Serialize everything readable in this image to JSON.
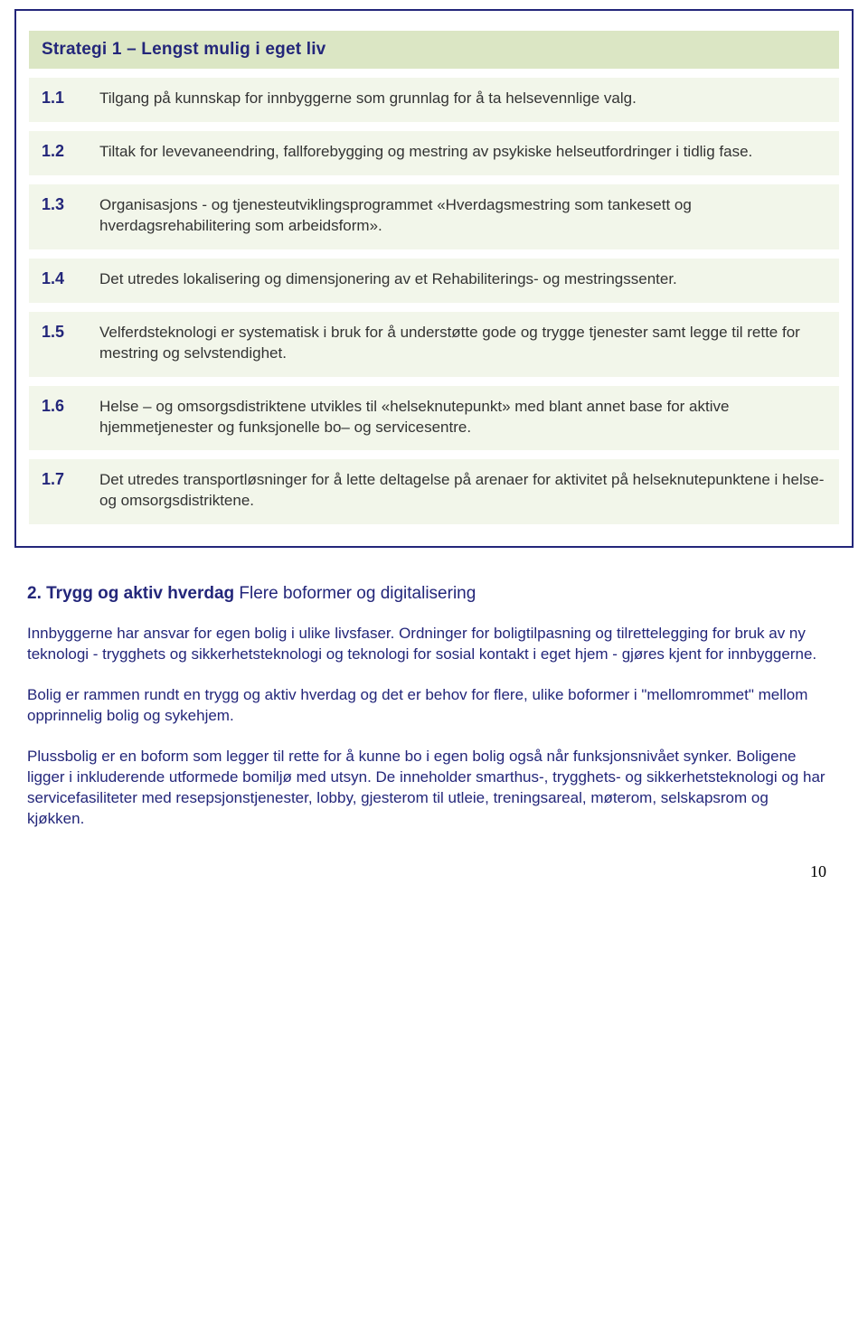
{
  "colors": {
    "border": "#23267a",
    "header_bg": "#dbe6c4",
    "row_bg": "#f2f6ea",
    "heading_text": "#23267a",
    "body_text": "#333333",
    "page_num": "#000000"
  },
  "strategy_table": {
    "header": "Strategi 1 – Lengst mulig i eget liv",
    "rows": [
      {
        "num": "1.1",
        "text": "Tilgang på kunnskap for innbyggerne som grunnlag for å ta helsevennlige valg."
      },
      {
        "num": "1.2",
        "text": "Tiltak for levevaneendring, fallforebygging og mestring av psykiske helseutfordringer i tidlig fase."
      },
      {
        "num": "1.3",
        "text": "Organisasjons - og tjenesteutviklingsprogrammet «Hverdagsmestring som tankesett og hverdagsrehabilitering som arbeidsform»."
      },
      {
        "num": "1.4",
        "text": "Det utredes lokalisering og dimensjonering av et Rehabiliterings- og mestringssenter."
      },
      {
        "num": "1.5",
        "text": "Velferdsteknologi er systematisk i bruk for å understøtte gode og trygge tjenester samt legge til rette for mestring og selvstendighet."
      },
      {
        "num": "1.6",
        "text": "Helse – og omsorgsdistriktene utvikles til «helseknutepunkt» med blant annet base for aktive hjemmetjenester og funksjonelle bo– og servicesentre."
      },
      {
        "num": "1.7",
        "text": "Det utredes transportløsninger for å lette deltagelse på arenaer for aktivitet på helseknutepunktene i helse- og omsorgsdistriktene."
      }
    ]
  },
  "section": {
    "title_bold": "2. Trygg og aktiv hverdag",
    "title_rest": " Flere boformer og digitalisering",
    "paragraphs": [
      "Innbyggerne har ansvar for egen bolig i ulike livsfaser. Ordninger for boligtilpasning og tilrettelegging for bruk av ny teknologi - trygghets og sikkerhetsteknologi og teknologi for sosial kontakt i eget hjem - gjøres kjent for innbyggerne.",
      "Bolig er rammen rundt en trygg og aktiv hverdag og det er behov for flere, ulike boformer i \"mellomrommet\" mellom opprinnelig bolig og sykehjem.",
      "Plussbolig er en boform som legger til rette for å kunne bo i egen bolig også når funksjonsnivået synker.  Boligene ligger i inkluderende utformede bomiljø med utsyn. De inneholder smarthus-, trygghets- og sikkerhetsteknologi og har servicefasiliteter med resepsjonstjenester, lobby, gjesterom til utleie, treningsareal, møterom, selskapsrom og kjøkken."
    ]
  },
  "page_number": "10"
}
